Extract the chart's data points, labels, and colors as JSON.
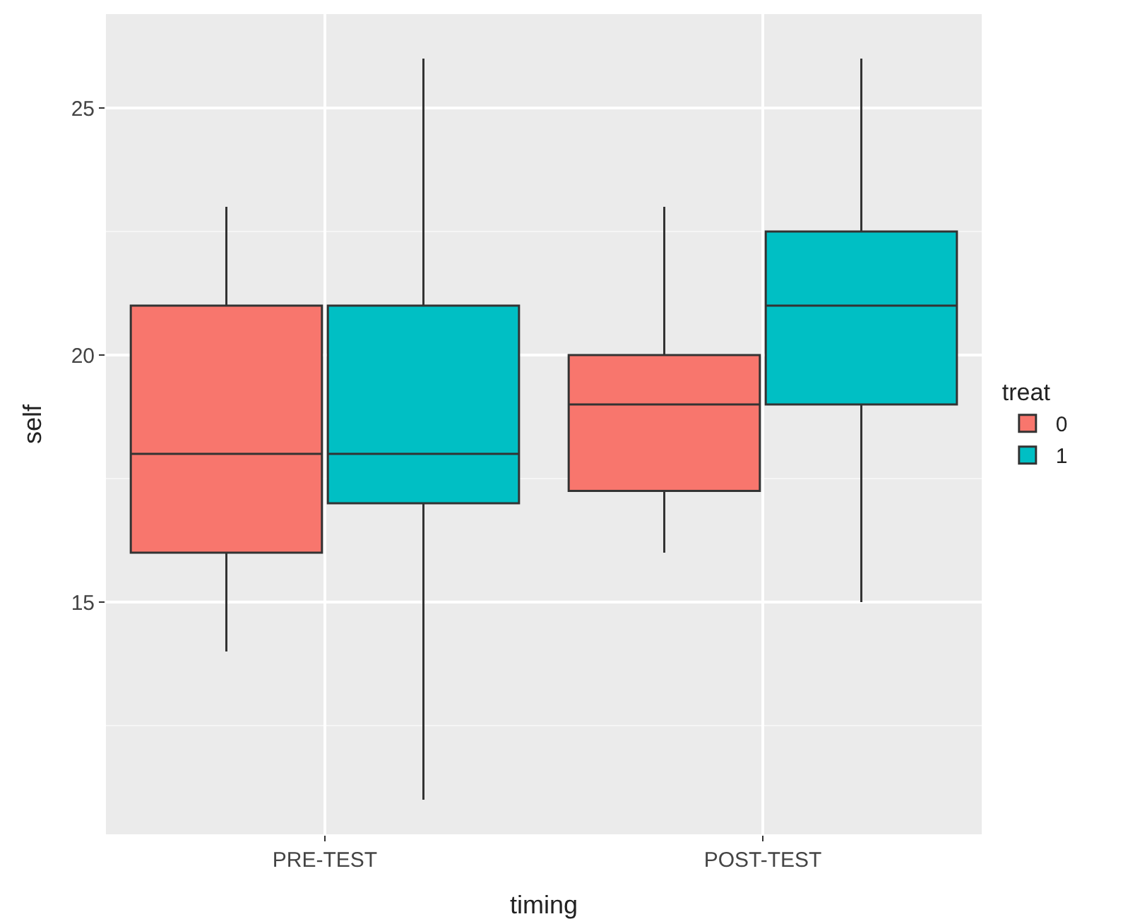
{
  "chart_data": {
    "type": "box",
    "xlabel": "timing",
    "ylabel": "self",
    "legend_title": "treat",
    "categories": [
      "PRE-TEST",
      "POST-TEST"
    ],
    "series": [
      {
        "name": "0",
        "color": "#f8766d",
        "boxes": [
          {
            "low": 14,
            "q1": 16,
            "median": 18,
            "q3": 21,
            "high": 23
          },
          {
            "low": 16,
            "q1": 17.25,
            "median": 19,
            "q3": 20,
            "high": 23
          }
        ]
      },
      {
        "name": "1",
        "color": "#00bfc4",
        "boxes": [
          {
            "low": 11,
            "q1": 17,
            "median": 18,
            "q3": 21,
            "high": 26
          },
          {
            "low": 15,
            "q1": 19,
            "median": 21,
            "q3": 22.5,
            "high": 26
          }
        ]
      }
    ],
    "ylim": [
      10.3,
      26.9
    ],
    "yticks": [
      15,
      20,
      25
    ],
    "grid": true,
    "legend": "right"
  }
}
